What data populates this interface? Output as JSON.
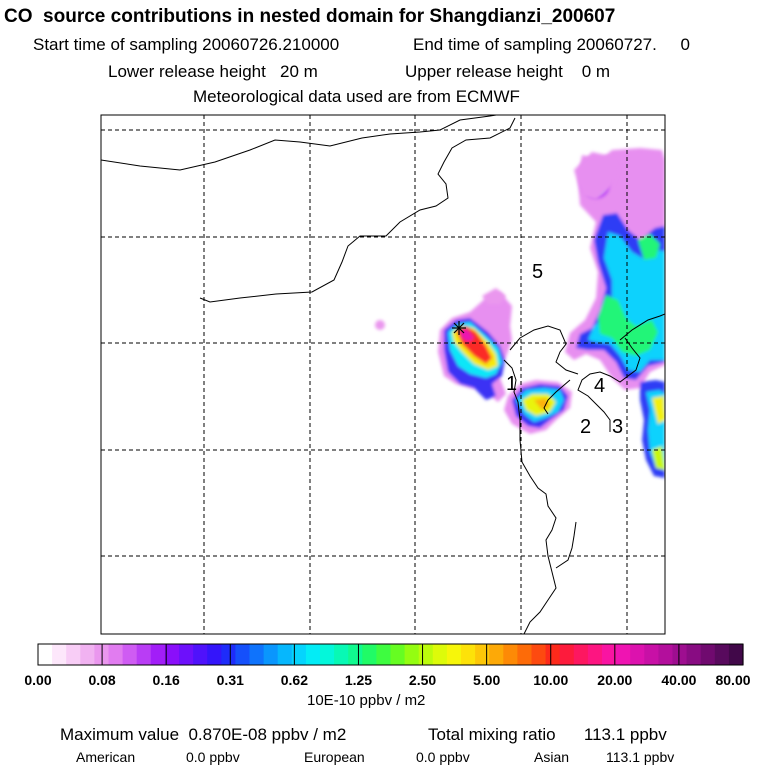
{
  "header": {
    "title": "CO  source contributions in nested domain for Shangdianzi_200607",
    "start_label": "Start time of sampling 20060726.210000",
    "end_label": "End time of sampling 20060727.     0",
    "lower_release": "Lower release height   20 m",
    "upper_release": "Upper release height    0 m",
    "met_source": "Meteorological data used are from ECMWF"
  },
  "map": {
    "region_labels": [
      "1",
      "2",
      "3",
      "4",
      "5"
    ],
    "station_marker": "star-cross",
    "gridlines": "dashed"
  },
  "colorbar": {
    "tick_labels": [
      "0.00",
      "0.08",
      "0.16",
      "0.31",
      "0.62",
      "1.25",
      "2.50",
      "5.00",
      "10.00",
      "20.00",
      "40.00",
      "80.00"
    ],
    "units": "10E-10 ppbv / m2",
    "colors": [
      "#ffffff",
      "#fde7fb",
      "#f8cdf6",
      "#f1b2f1",
      "#ea97ee",
      "#e17cf0",
      "#cf5cf3",
      "#b93df5",
      "#a21ef8",
      "#8a0ffa",
      "#6d10fb",
      "#4f12fb",
      "#3415fa",
      "#1e2cfa",
      "#1550fb",
      "#0f73fc",
      "#0a96fd",
      "#06b7fd",
      "#05d4fd",
      "#03ecf6",
      "#04f7da",
      "#08f9b5",
      "#10fa8f",
      "#20fb66",
      "#3efc40",
      "#66fd22",
      "#94fd11",
      "#bcfc0c",
      "#ddfb0a",
      "#f7f60a",
      "#fde209",
      "#fdc708",
      "#fda907",
      "#fd8a06",
      "#fd6b08",
      "#fd4a10",
      "#fd2a1b",
      "#fd1b3c",
      "#fd1760",
      "#fd1581",
      "#f914a2",
      "#ef14b2",
      "#dc12ae",
      "#c810a6",
      "#b30f9c",
      "#9e0e90",
      "#880c82",
      "#700a6f",
      "#580a5d",
      "#410849"
    ]
  },
  "summary": {
    "max_value": "Maximum value  0.870E-08 ppbv / m2",
    "total_mixing": "Total mixing ratio      113.1 ppbv",
    "american_label": "American",
    "american_value": "0.0 ppbv",
    "european_label": "European",
    "european_value": "0.0 ppbv",
    "asian_label": "Asian",
    "asian_value": "113.1 ppbv"
  }
}
